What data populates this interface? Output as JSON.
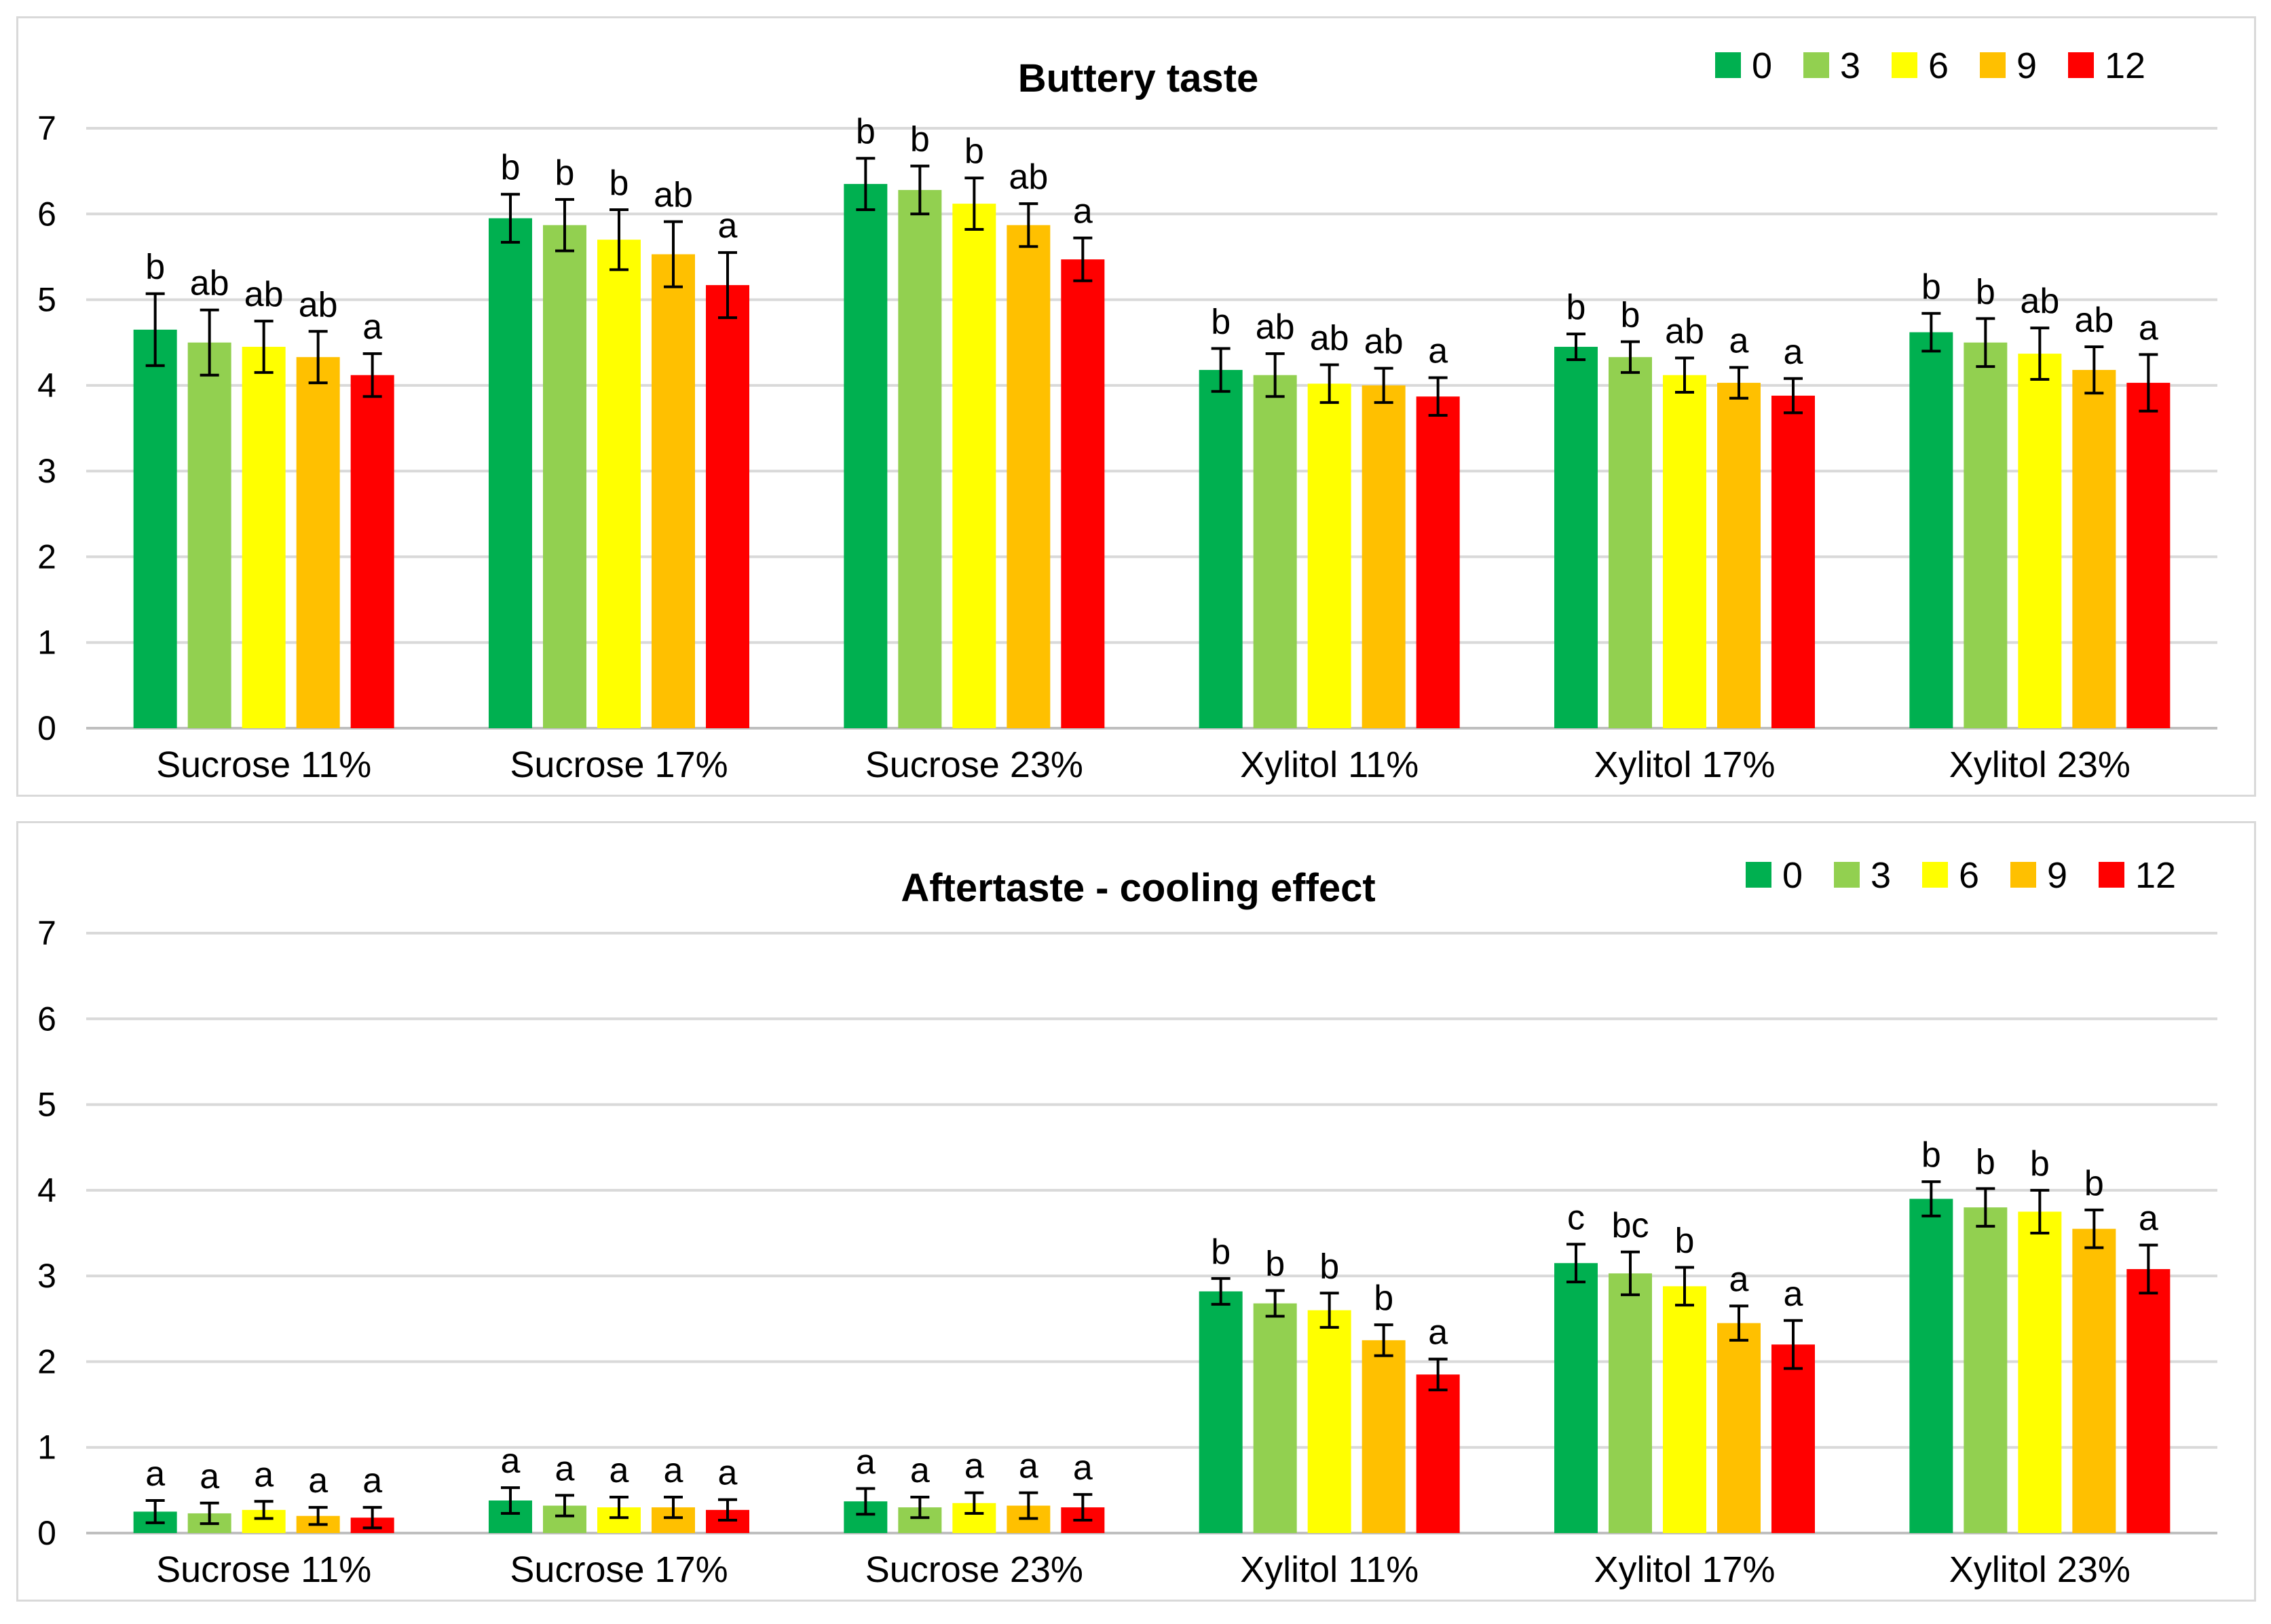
{
  "chart_data": [
    {
      "type": "bar",
      "title": "Buttery taste",
      "xlabel": "",
      "ylabel": "",
      "ylim": [
        0,
        7
      ],
      "yticks": [
        "0",
        "1",
        "2",
        "3",
        "4",
        "5",
        "6",
        "7"
      ],
      "grid": true,
      "legend_position": "top-right",
      "categories": [
        "Sucrose 11%",
        "Sucrose 17%",
        "Sucrose 23%",
        "Xylitol 11%",
        "Xylitol 17%",
        "Xylitol 23%"
      ],
      "series": [
        {
          "name": "0",
          "color": "#00b050",
          "values": [
            4.65,
            5.95,
            6.35,
            4.18,
            4.45,
            4.62
          ],
          "errors": [
            0.42,
            0.28,
            0.3,
            0.25,
            0.15,
            0.22
          ],
          "labels": [
            "b",
            "b",
            "b",
            "b",
            "b",
            "b"
          ]
        },
        {
          "name": "3",
          "color": "#92d050",
          "values": [
            4.5,
            5.87,
            6.28,
            4.12,
            4.33,
            4.5
          ],
          "errors": [
            0.38,
            0.3,
            0.28,
            0.25,
            0.18,
            0.28
          ],
          "labels": [
            "ab",
            "b",
            "b",
            "ab",
            "b",
            "b"
          ]
        },
        {
          "name": "6",
          "color": "#ffff00",
          "values": [
            4.45,
            5.7,
            6.12,
            4.02,
            4.12,
            4.37
          ],
          "errors": [
            0.3,
            0.35,
            0.3,
            0.22,
            0.2,
            0.3
          ],
          "labels": [
            "ab",
            "b",
            "b",
            "ab",
            "ab",
            "ab"
          ]
        },
        {
          "name": "9",
          "color": "#ffc000",
          "values": [
            4.33,
            5.53,
            5.87,
            4.0,
            4.03,
            4.18
          ],
          "errors": [
            0.3,
            0.38,
            0.25,
            0.2,
            0.18,
            0.27
          ],
          "labels": [
            "ab",
            "ab",
            "ab",
            "ab",
            "a",
            "ab"
          ]
        },
        {
          "name": "12",
          "color": "#ff0000",
          "values": [
            4.12,
            5.17,
            5.47,
            3.87,
            3.88,
            4.03
          ],
          "errors": [
            0.25,
            0.38,
            0.25,
            0.22,
            0.2,
            0.33
          ],
          "labels": [
            "a",
            "a",
            "a",
            "a",
            "a",
            "a"
          ]
        }
      ]
    },
    {
      "type": "bar",
      "title": "Aftertaste - cooling effect",
      "xlabel": "",
      "ylabel": "",
      "ylim": [
        0,
        7
      ],
      "yticks": [
        "0",
        "1",
        "2",
        "3",
        "4",
        "5",
        "6",
        "7"
      ],
      "grid": true,
      "legend_position": "top-right",
      "categories": [
        "Sucrose 11%",
        "Sucrose 17%",
        "Sucrose 23%",
        "Xylitol 11%",
        "Xylitol 17%",
        "Xylitol 23%"
      ],
      "series": [
        {
          "name": "0",
          "color": "#00b050",
          "values": [
            0.25,
            0.38,
            0.37,
            2.82,
            3.15,
            3.9
          ],
          "errors": [
            0.13,
            0.15,
            0.15,
            0.15,
            0.22,
            0.2
          ],
          "labels": [
            "a",
            "a",
            "a",
            "b",
            "c",
            "b"
          ]
        },
        {
          "name": "3",
          "color": "#92d050",
          "values": [
            0.23,
            0.32,
            0.3,
            2.68,
            3.03,
            3.8
          ],
          "errors": [
            0.12,
            0.12,
            0.12,
            0.15,
            0.25,
            0.22
          ],
          "labels": [
            "a",
            "a",
            "a",
            "b",
            "bc",
            "b"
          ]
        },
        {
          "name": "6",
          "color": "#ffff00",
          "values": [
            0.27,
            0.3,
            0.35,
            2.6,
            2.88,
            3.75
          ],
          "errors": [
            0.1,
            0.12,
            0.12,
            0.2,
            0.22,
            0.25
          ],
          "labels": [
            "a",
            "a",
            "a",
            "b",
            "b",
            "b"
          ]
        },
        {
          "name": "9",
          "color": "#ffc000",
          "values": [
            0.2,
            0.3,
            0.32,
            2.25,
            2.45,
            3.55
          ],
          "errors": [
            0.1,
            0.12,
            0.15,
            0.18,
            0.2,
            0.22
          ],
          "labels": [
            "a",
            "a",
            "a",
            "b",
            "a",
            "b"
          ]
        },
        {
          "name": "12",
          "color": "#ff0000",
          "values": [
            0.18,
            0.27,
            0.3,
            1.85,
            2.2,
            3.08
          ],
          "errors": [
            0.12,
            0.12,
            0.15,
            0.18,
            0.28,
            0.28
          ],
          "labels": [
            "a",
            "a",
            "a",
            "a",
            "a",
            "a"
          ]
        }
      ]
    }
  ]
}
